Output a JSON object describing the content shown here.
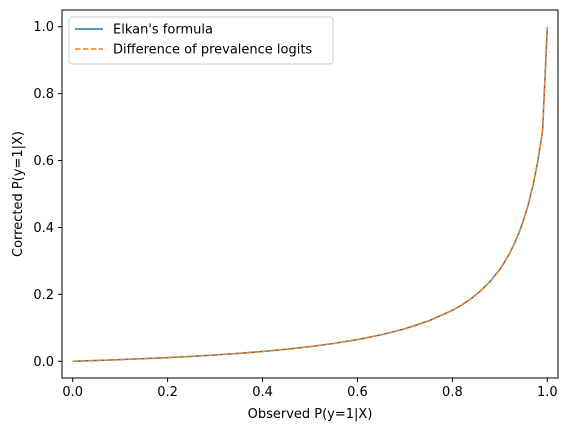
{
  "chart_data": {
    "type": "line",
    "title": "",
    "xlabel": "Observed P(y=1|X)",
    "ylabel": "Corrected P(y=1|X)",
    "xlim": [
      -0.0225,
      1.0225
    ],
    "ylim": [
      -0.05,
      1.05
    ],
    "xticks": [
      0.0,
      0.2,
      0.4,
      0.6,
      0.8,
      1.0
    ],
    "xtick_labels": [
      "0.0",
      "0.2",
      "0.4",
      "0.6",
      "0.8",
      "1.0"
    ],
    "yticks": [
      0.0,
      0.2,
      0.4,
      0.6,
      0.8,
      1.0
    ],
    "ytick_labels": [
      "0.0",
      "0.2",
      "0.4",
      "0.6",
      "0.8",
      "1.0"
    ],
    "grid": false,
    "legend_position": "upper-left",
    "series": [
      {
        "name": "Elkan's formula",
        "color": "#1f77b4",
        "style": "solid",
        "x": [
          0.0,
          0.05,
          0.1,
          0.15,
          0.2,
          0.25,
          0.3,
          0.35,
          0.4,
          0.45,
          0.5,
          0.55,
          0.6,
          0.65,
          0.7,
          0.75,
          0.8,
          0.82,
          0.84,
          0.86,
          0.88,
          0.9,
          0.91,
          0.92,
          0.93,
          0.94,
          0.95,
          0.96,
          0.97,
          0.98,
          0.99,
          1.0
        ],
        "y": [
          0.0,
          0.0023,
          0.0049,
          0.0078,
          0.011,
          0.0147,
          0.0189,
          0.0237,
          0.0293,
          0.0359,
          0.0438,
          0.0533,
          0.0648,
          0.0791,
          0.0972,
          0.1207,
          0.1522,
          0.1686,
          0.1879,
          0.2111,
          0.2395,
          0.2751,
          0.2965,
          0.3212,
          0.3496,
          0.3829,
          0.4222,
          0.4692,
          0.5265,
          0.5978,
          0.6886,
          1.0
        ]
      },
      {
        "name": "Difference of prevalence logits",
        "color": "#ff7f0e",
        "style": "dashed",
        "x": [
          0.0,
          0.05,
          0.1,
          0.15,
          0.2,
          0.25,
          0.3,
          0.35,
          0.4,
          0.45,
          0.5,
          0.55,
          0.6,
          0.65,
          0.7,
          0.75,
          0.8,
          0.82,
          0.84,
          0.86,
          0.88,
          0.9,
          0.91,
          0.92,
          0.93,
          0.94,
          0.95,
          0.96,
          0.97,
          0.98,
          0.99,
          1.0
        ],
        "y": [
          0.0,
          0.0023,
          0.0049,
          0.0078,
          0.011,
          0.0147,
          0.0189,
          0.0237,
          0.0293,
          0.0359,
          0.0438,
          0.0533,
          0.0648,
          0.0791,
          0.0972,
          0.1207,
          0.1522,
          0.1686,
          0.1879,
          0.2111,
          0.2395,
          0.2751,
          0.2965,
          0.3212,
          0.3496,
          0.3829,
          0.4222,
          0.4692,
          0.5265,
          0.5978,
          0.6886,
          1.0
        ]
      }
    ]
  }
}
